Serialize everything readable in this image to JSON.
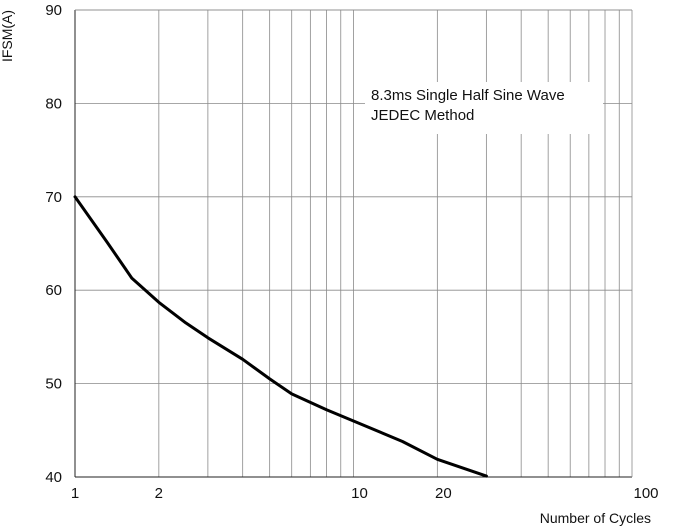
{
  "chart_data": {
    "type": "line",
    "xscale": "log",
    "xlim": [
      1,
      100
    ],
    "ylim": [
      40,
      90
    ],
    "xlabel": "Number of Cycles",
    "ylabel": "IFSM(A)",
    "x_ticks": [
      1,
      2,
      10,
      20,
      100
    ],
    "y_ticks": [
      40,
      50,
      60,
      70,
      80,
      90
    ],
    "grid": true,
    "annotation": [
      "8.3ms Single Half Sine Wave",
      "JEDEC Method"
    ],
    "series": [
      {
        "x": [
          1,
          1.3,
          1.6,
          2,
          2.5,
          3,
          4,
          5,
          6,
          8,
          10,
          15,
          20,
          30
        ],
        "y": [
          70,
          65.2,
          61.3,
          58.7,
          56.5,
          54.9,
          52.6,
          50.5,
          48.9,
          47.2,
          46.0,
          43.8,
          41.9,
          40.1
        ]
      }
    ]
  }
}
